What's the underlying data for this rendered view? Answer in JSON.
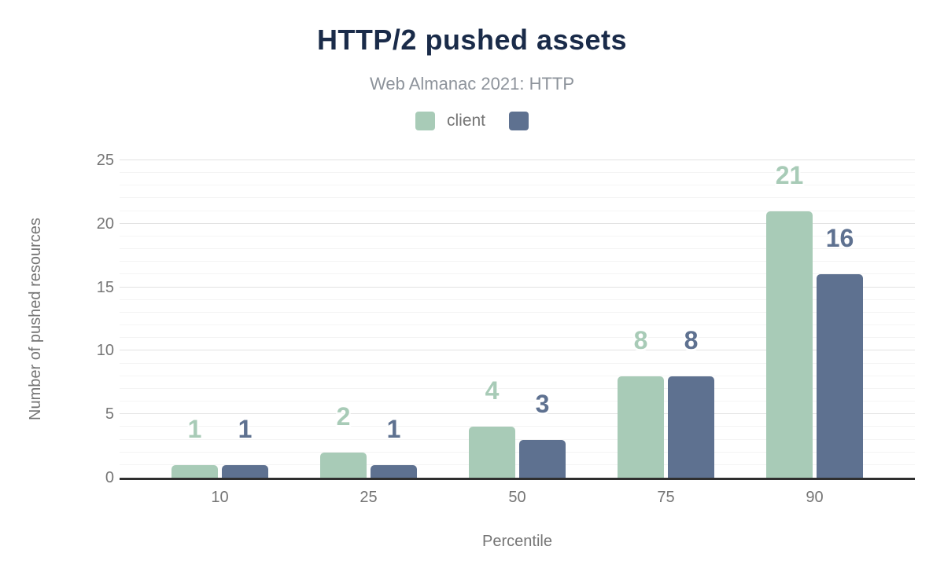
{
  "title": "HTTP/2 pushed assets",
  "subtitle": "Web Almanac 2021: HTTP",
  "colors": {
    "title": "#1a2b49",
    "subtitle": "#8d939b",
    "axis_text": "#757575",
    "baseline": "#2f2f2f",
    "grid_major": "#e2e2e2",
    "grid_minor": "#f4f4f4",
    "background": "#ffffff",
    "series_client": "#a8cbb7",
    "series_unlabeled": "#5e7190"
  },
  "chart_data": {
    "type": "bar",
    "title": "HTTP/2 pushed assets",
    "subtitle": "Web Almanac 2021: HTTP",
    "categories": [
      "10",
      "25",
      "50",
      "75",
      "90"
    ],
    "series": [
      {
        "name": "client",
        "color": "#a8cbb7",
        "values": [
          1,
          2,
          4,
          8,
          21
        ]
      },
      {
        "name": "",
        "color": "#5e7190",
        "values": [
          1,
          1,
          3,
          8,
          16
        ]
      }
    ],
    "xlabel": "Percentile",
    "ylabel": "Number of pushed resources",
    "ylim": [
      0,
      25
    ],
    "ytick_step": 5,
    "minor_grid_step": 1,
    "grid": true,
    "legend_position": "top",
    "bar_value_labels": true
  }
}
